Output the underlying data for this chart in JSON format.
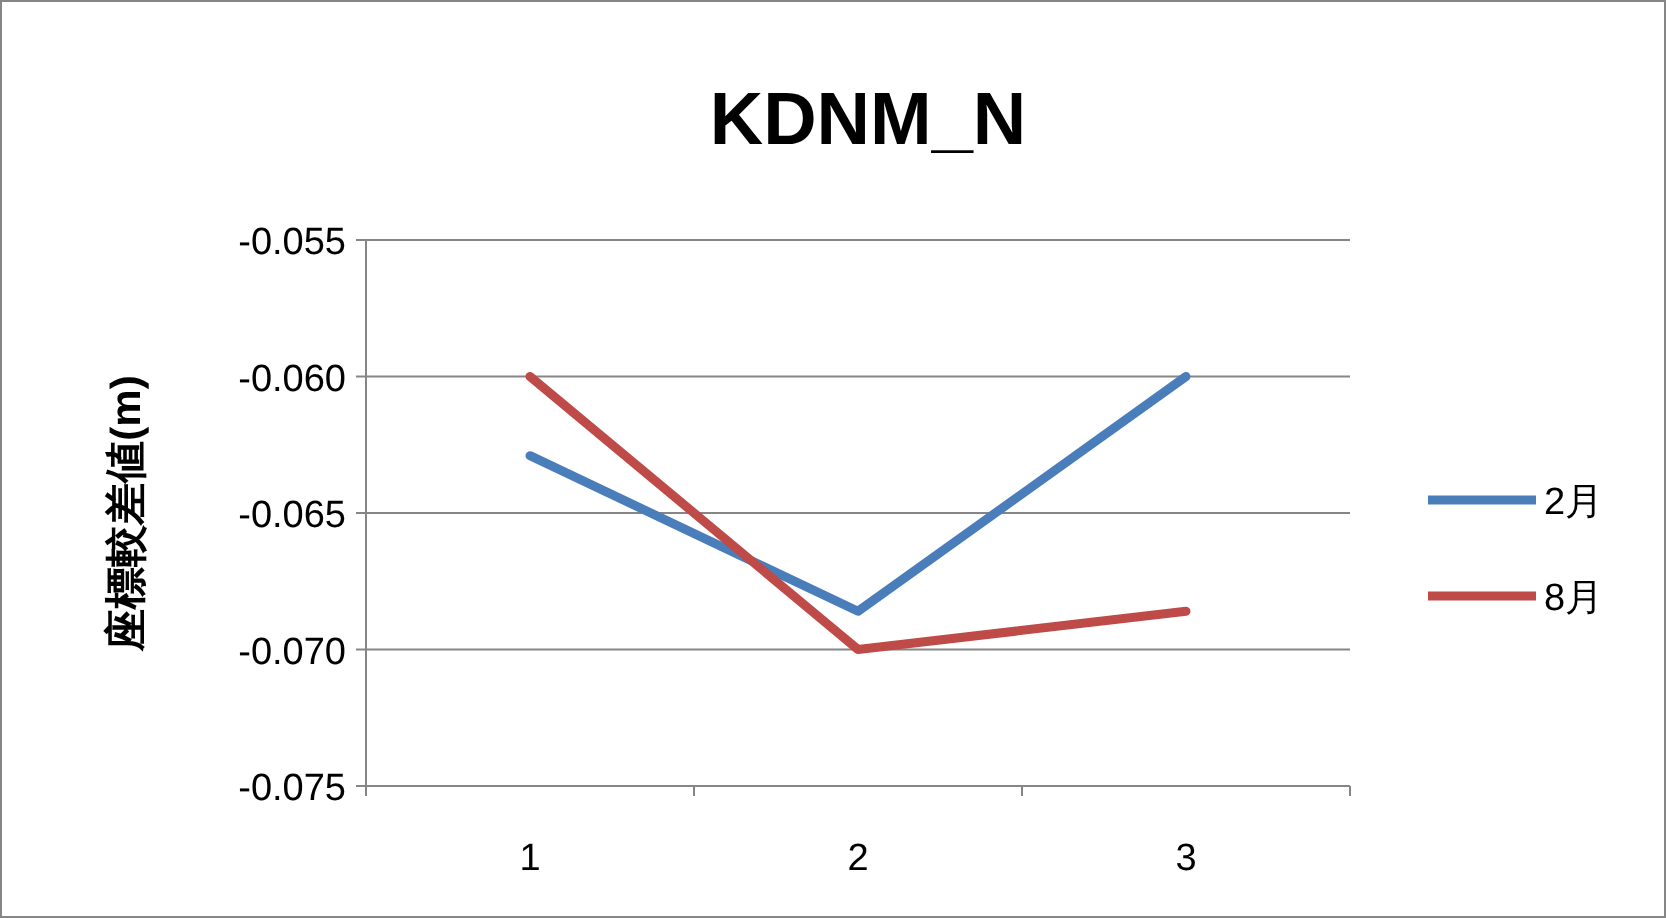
{
  "chart_data": {
    "type": "line",
    "title": "KDNM_N",
    "ylabel": "座標較差値(m)",
    "categories": [
      "1",
      "2",
      "3"
    ],
    "series": [
      {
        "name": "2月",
        "color": "#4a7ebb",
        "values": [
          -0.0629,
          -0.0686,
          -0.06
        ]
      },
      {
        "name": "8月",
        "color": "#be4b48",
        "values": [
          -0.06,
          -0.07,
          -0.0686
        ]
      }
    ],
    "ylim": [
      -0.075,
      -0.055
    ],
    "yticks": [
      -0.075,
      {
        "value": -0.07,
        "label": "-0.070"
      },
      -0.065,
      {
        "value": -0.06,
        "label": "-0.060"
      },
      -0.055
    ],
    "grid": "y",
    "legend": "right",
    "marker": "none",
    "line_style": "solid"
  }
}
